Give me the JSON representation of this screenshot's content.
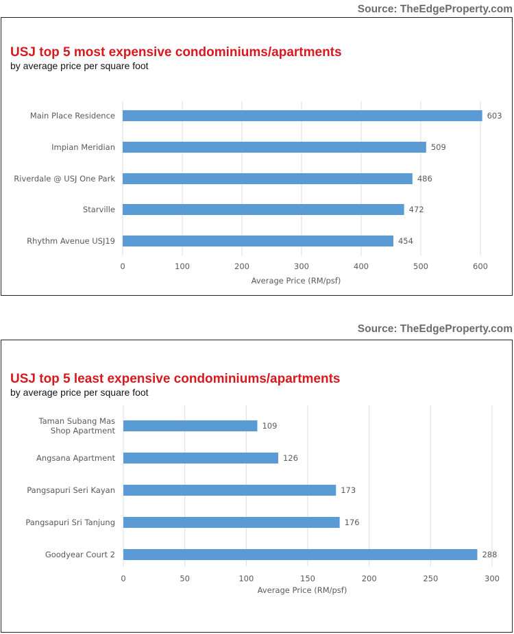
{
  "charts": [
    {
      "source": "Source: TheEdgeProperty.com",
      "title": "USJ top 5 most expensive condominiums/apartments",
      "subtitle": "by average price per square foot",
      "chart_data": {
        "type": "bar",
        "orientation": "horizontal",
        "title": "USJ top 5 most expensive condominiums/apartments",
        "subtitle": "by average price per square foot",
        "categories": [
          "Main Place Residence",
          "Impian Meridian",
          "Riverdale @ USJ One Park",
          "Starville",
          "Rhythm Avenue USJ19"
        ],
        "values": [
          603,
          509,
          486,
          472,
          454
        ],
        "xlabel": "Average Price (RM/psf)",
        "ylabel": "",
        "xlim": [
          0,
          600
        ],
        "ticks": [
          0,
          100,
          200,
          300,
          400,
          500,
          600
        ],
        "grid": true,
        "bar_color": "#5b9bd5"
      }
    },
    {
      "source": "Source: TheEdgeProperty.com",
      "title": "USJ top 5 least expensive condominiums/apartments",
      "subtitle": "by average price per square foot",
      "chart_data": {
        "type": "bar",
        "orientation": "horizontal",
        "title": "USJ top 5 least expensive condominiums/apartments",
        "subtitle": "by average price per square foot",
        "categories": [
          "Taman Subang Mas Shop Apartment",
          "Angsana Apartment",
          "Pangsapuri Seri Kayan",
          "Pangsapuri Sri Tanjung",
          "Goodyear Court 2"
        ],
        "values": [
          109,
          126,
          173,
          176,
          288
        ],
        "xlabel": "Average Price (RM/psf)",
        "ylabel": "",
        "xlim": [
          0,
          300
        ],
        "ticks": [
          0,
          50,
          100,
          150,
          200,
          250,
          300
        ],
        "grid": true,
        "bar_color": "#5b9bd5"
      }
    }
  ]
}
